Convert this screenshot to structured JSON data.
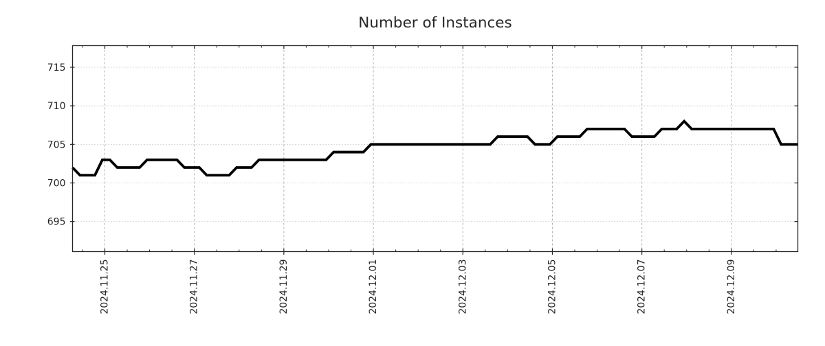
{
  "chart_data": {
    "type": "line",
    "title": "Number of Instances",
    "grid": true,
    "legend": false,
    "line_color": "#000000",
    "text_color": "#262626",
    "grid_color": "#b0b0b0",
    "y_ticks": [
      695,
      700,
      705,
      710,
      715
    ],
    "ylim": [
      691.1,
      717.8
    ],
    "x_tick_labels": [
      "2024.11.25",
      "2024.11.27",
      "2024.11.29",
      "2024.12.01",
      "2024.12.03",
      "2024.12.05",
      "2024.12.07",
      "2024.12.09"
    ],
    "x_tick_day_offsets": [
      0,
      2,
      4,
      6,
      8,
      10,
      12,
      14
    ],
    "x_minor_interval_days": 0.5,
    "xlim_days": [
      -0.722,
      15.485
    ],
    "first_sample_day_offset": -0.722,
    "sample_interval_days": 0.166667,
    "series": [
      {
        "name": "Number of Instances",
        "values": [
          702,
          701,
          701,
          701,
          703,
          703,
          702,
          702,
          702,
          702,
          703,
          703,
          703,
          703,
          703,
          702,
          702,
          702,
          701,
          701,
          701,
          701,
          702,
          702,
          702,
          703,
          703,
          703,
          703,
          703,
          703,
          703,
          703,
          703,
          703,
          704,
          704,
          704,
          704,
          704,
          705,
          705,
          705,
          705,
          705,
          705,
          705,
          705,
          705,
          705,
          705,
          705,
          705,
          705,
          705,
          705,
          705,
          706,
          706,
          706,
          706,
          706,
          705,
          705,
          705,
          706,
          706,
          706,
          706,
          707,
          707,
          707,
          707,
          707,
          707,
          706,
          706,
          706,
          706,
          707,
          707,
          707,
          708,
          707,
          707,
          707,
          707,
          707,
          707,
          707,
          707,
          707,
          707,
          707,
          707,
          705,
          705,
          705
        ]
      }
    ]
  }
}
